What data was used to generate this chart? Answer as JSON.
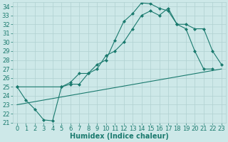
{
  "xlabel": "Humidex (Indice chaleur)",
  "bg_color": "#cde8e8",
  "line_color": "#1a7a6e",
  "grid_color": "#b0d0d0",
  "xlim": [
    -0.5,
    23.5
  ],
  "ylim": [
    21,
    34.5
  ],
  "xticks": [
    0,
    1,
    2,
    3,
    4,
    5,
    6,
    7,
    8,
    9,
    10,
    11,
    12,
    13,
    14,
    15,
    16,
    17,
    18,
    19,
    20,
    21,
    22,
    23
  ],
  "yticks": [
    21,
    22,
    23,
    24,
    25,
    26,
    27,
    28,
    29,
    30,
    31,
    32,
    33,
    34
  ],
  "line1_x": [
    0,
    1,
    2,
    3,
    4,
    5,
    6,
    7,
    8,
    9,
    10,
    11,
    12,
    13,
    14,
    15,
    16,
    17,
    18,
    19,
    20,
    21,
    22
  ],
  "line1_y": [
    25.0,
    23.5,
    22.5,
    21.3,
    21.2,
    25.0,
    25.3,
    25.3,
    26.5,
    27.5,
    28.0,
    30.2,
    32.3,
    33.2,
    34.4,
    34.3,
    33.8,
    33.5,
    32.0,
    31.5,
    29.0,
    27.0,
    27.0
  ],
  "line2_x": [
    0,
    5,
    6,
    7,
    8,
    9,
    10,
    11,
    12,
    13,
    14,
    15,
    16,
    17,
    18,
    19,
    20,
    21,
    22,
    23
  ],
  "line2_y": [
    25.0,
    25.0,
    25.5,
    26.5,
    26.5,
    27.0,
    28.5,
    29.0,
    30.0,
    31.5,
    33.0,
    33.5,
    33.0,
    33.8,
    32.0,
    32.0,
    31.5,
    31.5,
    29.0,
    27.5
  ],
  "line3_x": [
    0,
    23
  ],
  "line3_y": [
    23.0,
    27.0
  ],
  "marker": "D",
  "marker_size": 2,
  "font_size": 6,
  "lw": 0.8
}
